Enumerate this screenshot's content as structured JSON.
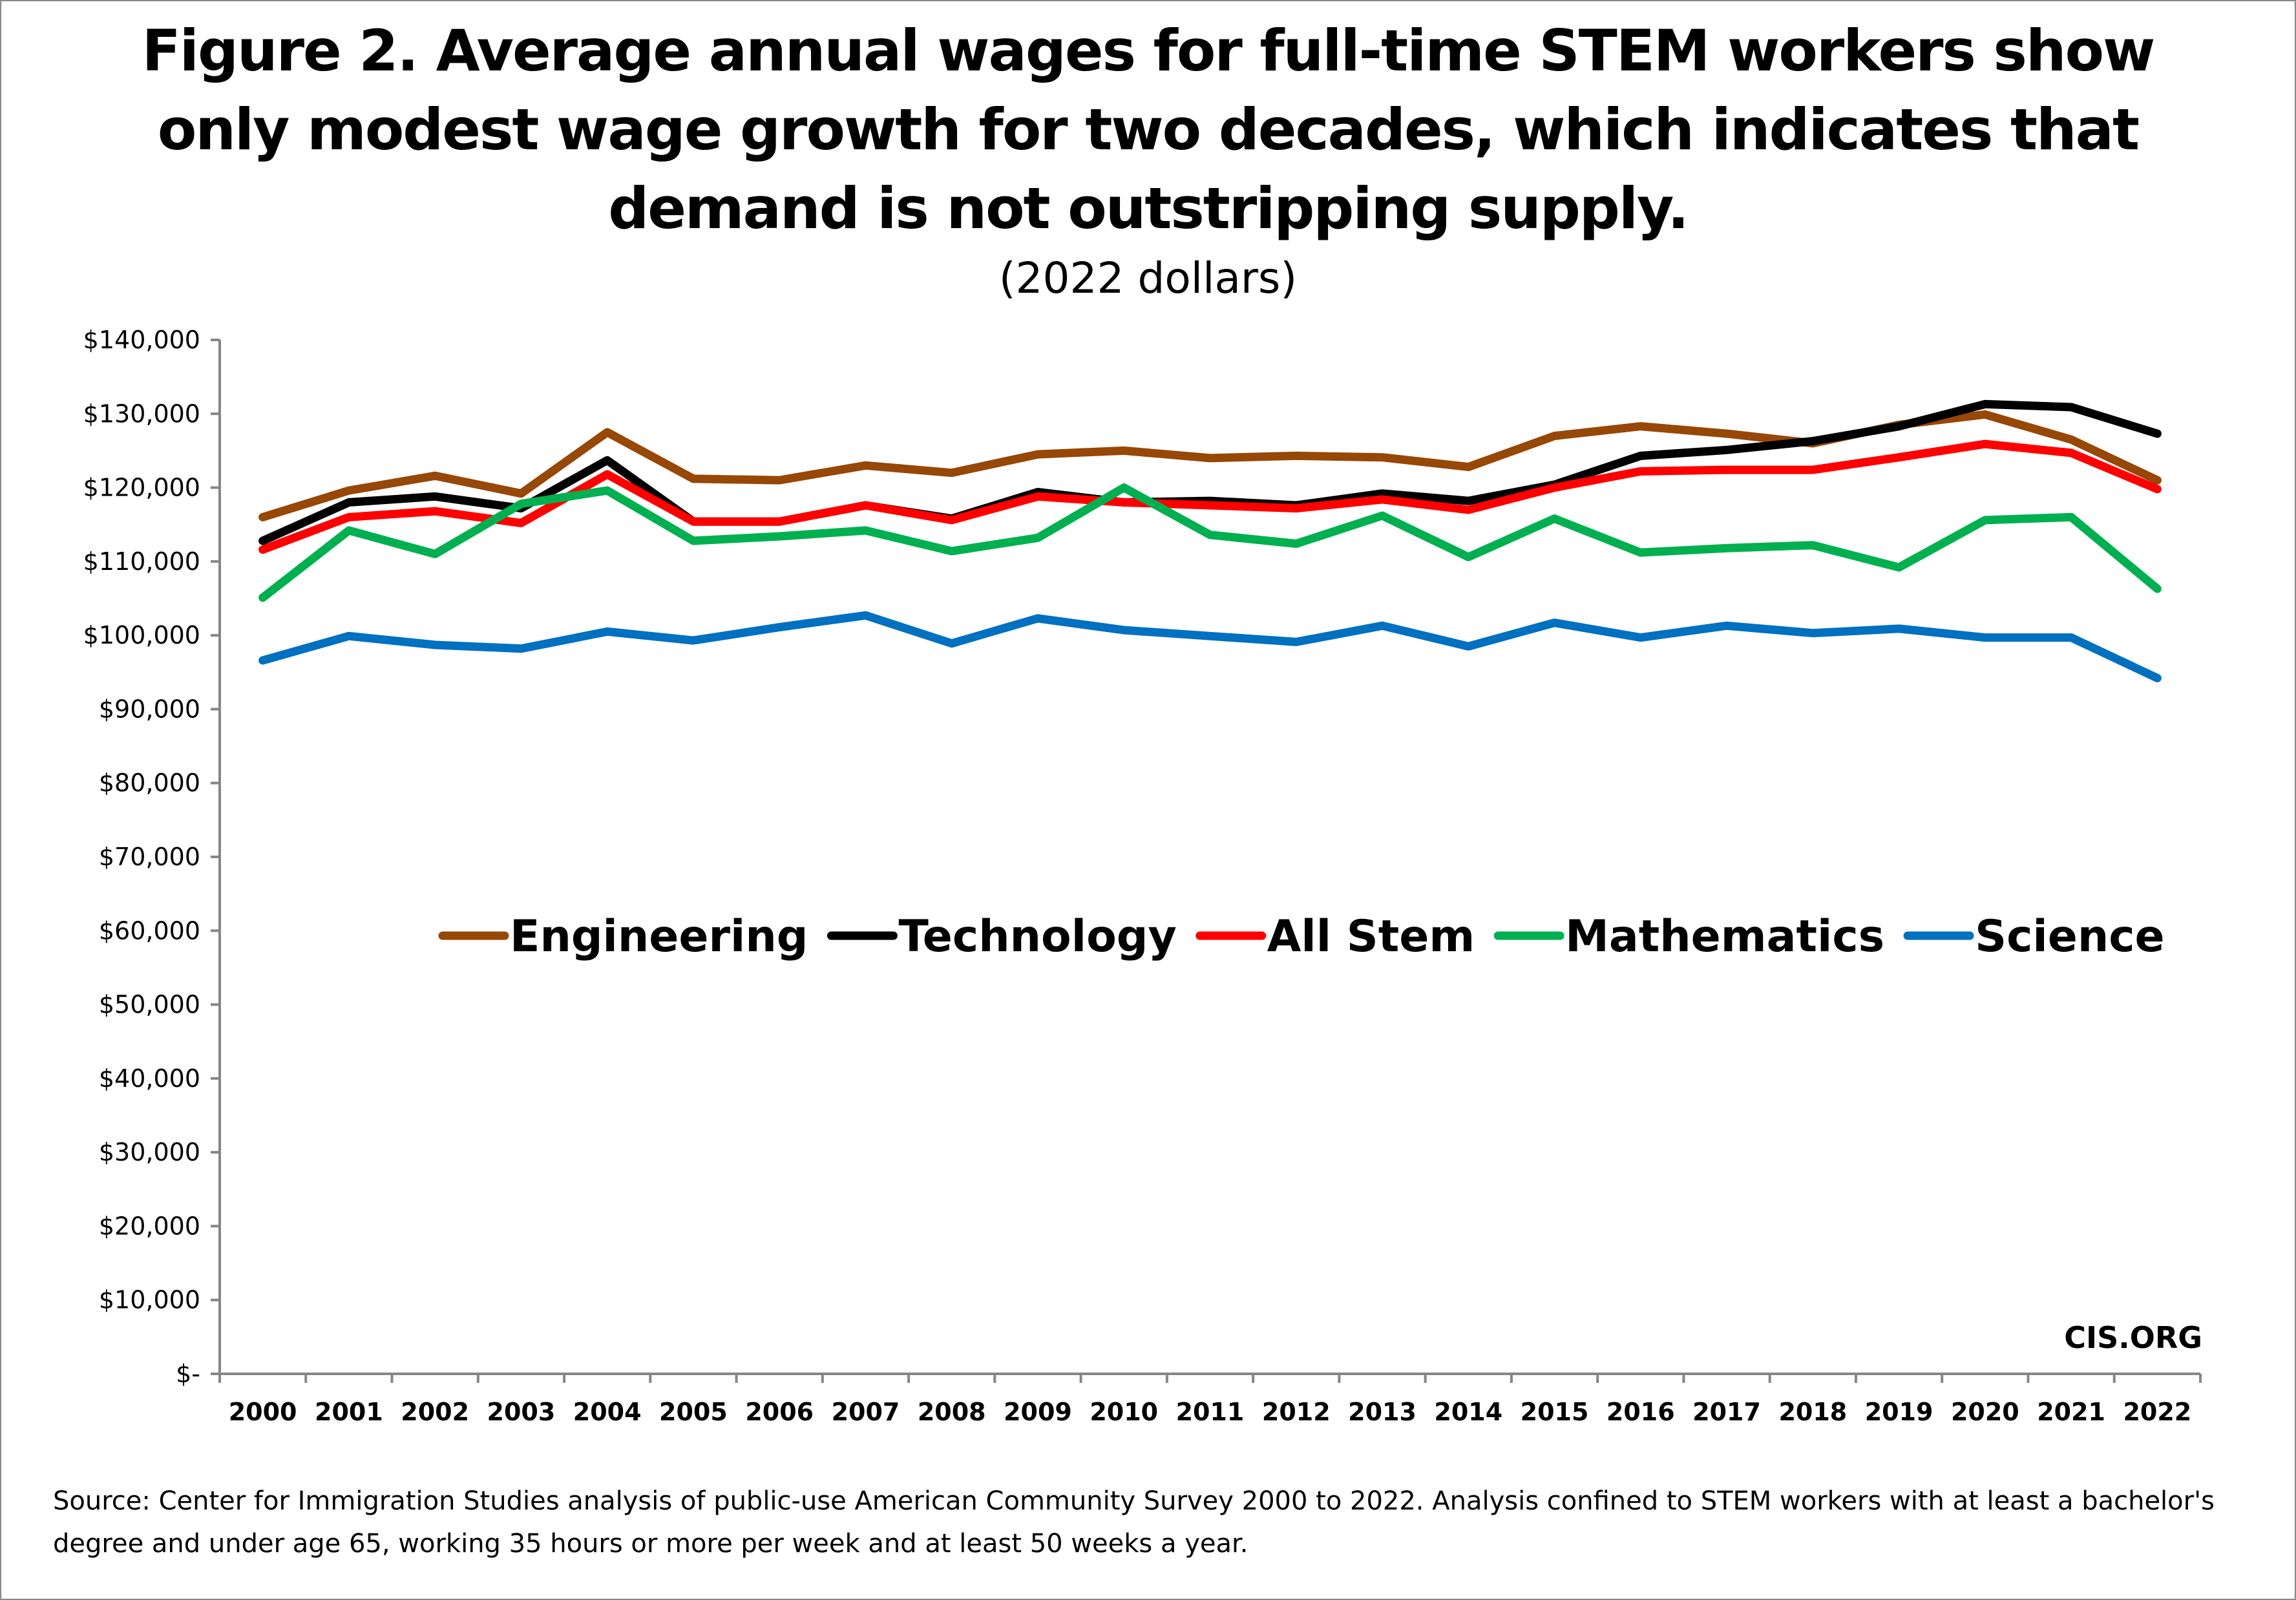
{
  "chart_data": {
    "type": "line",
    "title": "Figure 2. Average annual wages for full-time STEM workers show only modest wage growth for two decades, which indicates that demand is not outstripping supply.",
    "title_lines": [
      "Figure 2. Average annual wages for full-time STEM workers show",
      "only modest wage growth for two decades, which indicates that",
      "demand is not outstripping supply."
    ],
    "subtitle": "(2022 dollars)",
    "xlabel": "",
    "ylabel": "",
    "ylim": [
      0,
      140000
    ],
    "yticks": [
      0,
      10000,
      20000,
      30000,
      40000,
      50000,
      60000,
      70000,
      80000,
      90000,
      100000,
      110000,
      120000,
      130000,
      140000
    ],
    "ytick_labels": [
      "$-",
      "$10,000",
      "$20,000",
      "$30,000",
      "$40,000",
      "$50,000",
      "$60,000",
      "$70,000",
      "$80,000",
      "$90,000",
      "$100,000",
      "$110,000",
      "$120,000",
      "$130,000",
      "$140,000"
    ],
    "categories": [
      "2000",
      "2001",
      "2002",
      "2003",
      "2004",
      "2005",
      "2006",
      "2007",
      "2008",
      "2009",
      "2010",
      "2011",
      "2012",
      "2013",
      "2014",
      "2015",
      "2016",
      "2017",
      "2018",
      "2019",
      "2020",
      "2021",
      "2022"
    ],
    "grid": false,
    "legend_position": "center",
    "series": [
      {
        "name": "Engineering",
        "color": "#974706",
        "values": [
          116000,
          119600,
          121600,
          119200,
          127500,
          121200,
          121000,
          123000,
          122000,
          124500,
          125000,
          124000,
          124300,
          124100,
          122800,
          127000,
          128300,
          127300,
          126000,
          128500,
          129900,
          126500,
          121000
        ]
      },
      {
        "name": "Technology",
        "color": "#000000",
        "values": [
          112800,
          118000,
          118800,
          117200,
          123700,
          115400,
          115400,
          117600,
          115800,
          119400,
          118000,
          118200,
          117600,
          119200,
          118200,
          120400,
          124300,
          125100,
          126300,
          128300,
          131300,
          130900,
          127300
        ]
      },
      {
        "name": "All Stem",
        "color": "#ff0000",
        "values": [
          111600,
          116000,
          116800,
          115200,
          121800,
          115400,
          115400,
          117600,
          115600,
          118800,
          118000,
          117600,
          117200,
          118400,
          117000,
          120000,
          122200,
          122400,
          122400,
          124100,
          125900,
          124700,
          119800
        ]
      },
      {
        "name": "Mathematics",
        "color": "#00b050",
        "values": [
          105100,
          114200,
          111000,
          117800,
          119600,
          112800,
          113400,
          114200,
          111400,
          113200,
          120000,
          113600,
          112400,
          116200,
          110600,
          115800,
          111200,
          111800,
          112200,
          109200,
          115600,
          116000,
          106300
        ]
      },
      {
        "name": "Science",
        "color": "#0070c0",
        "values": [
          96600,
          99900,
          98700,
          98200,
          100500,
          99300,
          101100,
          102700,
          98900,
          102300,
          100700,
          99900,
          99100,
          101300,
          98500,
          101700,
          99700,
          101300,
          100300,
          100900,
          99700,
          99700,
          94200
        ]
      }
    ],
    "annotation": "CIS.ORG"
  },
  "source_note": "Source: Center for Immigration Studies analysis of public-use American Community Survey 2000 to 2022. Analysis confined to STEM workers with at least a bachelor's degree and under age 65, working 35 hours or more per week and at least 50 weeks a year."
}
